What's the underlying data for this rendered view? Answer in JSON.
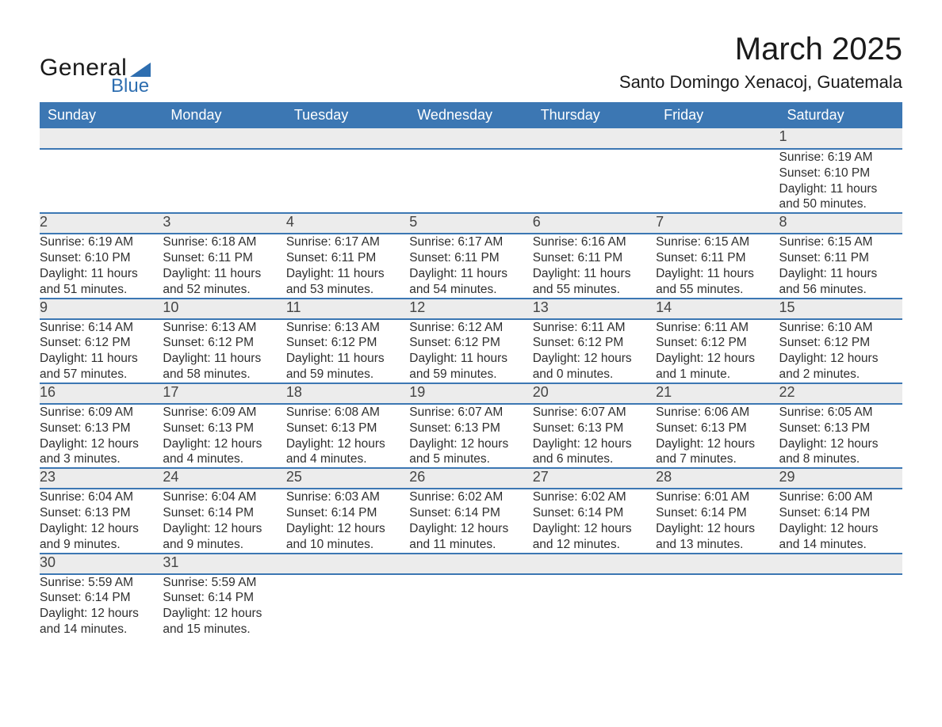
{
  "colors": {
    "header_bg": "#3c77b3",
    "header_text": "#ffffff",
    "daynum_bg": "#ececec",
    "row_divider": "#3c77b3",
    "body_text": "#2f2f2f",
    "logo_accent": "#2e6eb0",
    "page_bg": "#ffffff"
  },
  "typography": {
    "base_family": "Arial, Helvetica, sans-serif",
    "month_title_size_pt": 30,
    "location_size_pt": 16,
    "header_cell_size_pt": 13,
    "daynum_size_pt": 13,
    "detail_size_pt": 11
  },
  "logo": {
    "word1": "General",
    "word2": "Blue"
  },
  "title": "March 2025",
  "location": "Santo Domingo Xenacoj, Guatemala",
  "weekdays": [
    "Sunday",
    "Monday",
    "Tuesday",
    "Wednesday",
    "Thursday",
    "Friday",
    "Saturday"
  ],
  "labels": {
    "sunrise": "Sunrise: ",
    "sunset": "Sunset: ",
    "daylight": "Daylight: "
  },
  "weeks": [
    [
      null,
      null,
      null,
      null,
      null,
      null,
      {
        "n": "1",
        "sunrise": "6:19 AM",
        "sunset": "6:10 PM",
        "daylight_l1": "11 hours",
        "daylight_l2": "and 50 minutes."
      }
    ],
    [
      {
        "n": "2",
        "sunrise": "6:19 AM",
        "sunset": "6:10 PM",
        "daylight_l1": "11 hours",
        "daylight_l2": "and 51 minutes."
      },
      {
        "n": "3",
        "sunrise": "6:18 AM",
        "sunset": "6:11 PM",
        "daylight_l1": "11 hours",
        "daylight_l2": "and 52 minutes."
      },
      {
        "n": "4",
        "sunrise": "6:17 AM",
        "sunset": "6:11 PM",
        "daylight_l1": "11 hours",
        "daylight_l2": "and 53 minutes."
      },
      {
        "n": "5",
        "sunrise": "6:17 AM",
        "sunset": "6:11 PM",
        "daylight_l1": "11 hours",
        "daylight_l2": "and 54 minutes."
      },
      {
        "n": "6",
        "sunrise": "6:16 AM",
        "sunset": "6:11 PM",
        "daylight_l1": "11 hours",
        "daylight_l2": "and 55 minutes."
      },
      {
        "n": "7",
        "sunrise": "6:15 AM",
        "sunset": "6:11 PM",
        "daylight_l1": "11 hours",
        "daylight_l2": "and 55 minutes."
      },
      {
        "n": "8",
        "sunrise": "6:15 AM",
        "sunset": "6:11 PM",
        "daylight_l1": "11 hours",
        "daylight_l2": "and 56 minutes."
      }
    ],
    [
      {
        "n": "9",
        "sunrise": "6:14 AM",
        "sunset": "6:12 PM",
        "daylight_l1": "11 hours",
        "daylight_l2": "and 57 minutes."
      },
      {
        "n": "10",
        "sunrise": "6:13 AM",
        "sunset": "6:12 PM",
        "daylight_l1": "11 hours",
        "daylight_l2": "and 58 minutes."
      },
      {
        "n": "11",
        "sunrise": "6:13 AM",
        "sunset": "6:12 PM",
        "daylight_l1": "11 hours",
        "daylight_l2": "and 59 minutes."
      },
      {
        "n": "12",
        "sunrise": "6:12 AM",
        "sunset": "6:12 PM",
        "daylight_l1": "11 hours",
        "daylight_l2": "and 59 minutes."
      },
      {
        "n": "13",
        "sunrise": "6:11 AM",
        "sunset": "6:12 PM",
        "daylight_l1": "12 hours",
        "daylight_l2": "and 0 minutes."
      },
      {
        "n": "14",
        "sunrise": "6:11 AM",
        "sunset": "6:12 PM",
        "daylight_l1": "12 hours",
        "daylight_l2": "and 1 minute."
      },
      {
        "n": "15",
        "sunrise": "6:10 AM",
        "sunset": "6:12 PM",
        "daylight_l1": "12 hours",
        "daylight_l2": "and 2 minutes."
      }
    ],
    [
      {
        "n": "16",
        "sunrise": "6:09 AM",
        "sunset": "6:13 PM",
        "daylight_l1": "12 hours",
        "daylight_l2": "and 3 minutes."
      },
      {
        "n": "17",
        "sunrise": "6:09 AM",
        "sunset": "6:13 PM",
        "daylight_l1": "12 hours",
        "daylight_l2": "and 4 minutes."
      },
      {
        "n": "18",
        "sunrise": "6:08 AM",
        "sunset": "6:13 PM",
        "daylight_l1": "12 hours",
        "daylight_l2": "and 4 minutes."
      },
      {
        "n": "19",
        "sunrise": "6:07 AM",
        "sunset": "6:13 PM",
        "daylight_l1": "12 hours",
        "daylight_l2": "and 5 minutes."
      },
      {
        "n": "20",
        "sunrise": "6:07 AM",
        "sunset": "6:13 PM",
        "daylight_l1": "12 hours",
        "daylight_l2": "and 6 minutes."
      },
      {
        "n": "21",
        "sunrise": "6:06 AM",
        "sunset": "6:13 PM",
        "daylight_l1": "12 hours",
        "daylight_l2": "and 7 minutes."
      },
      {
        "n": "22",
        "sunrise": "6:05 AM",
        "sunset": "6:13 PM",
        "daylight_l1": "12 hours",
        "daylight_l2": "and 8 minutes."
      }
    ],
    [
      {
        "n": "23",
        "sunrise": "6:04 AM",
        "sunset": "6:13 PM",
        "daylight_l1": "12 hours",
        "daylight_l2": "and 9 minutes."
      },
      {
        "n": "24",
        "sunrise": "6:04 AM",
        "sunset": "6:14 PM",
        "daylight_l1": "12 hours",
        "daylight_l2": "and 9 minutes."
      },
      {
        "n": "25",
        "sunrise": "6:03 AM",
        "sunset": "6:14 PM",
        "daylight_l1": "12 hours",
        "daylight_l2": "and 10 minutes."
      },
      {
        "n": "26",
        "sunrise": "6:02 AM",
        "sunset": "6:14 PM",
        "daylight_l1": "12 hours",
        "daylight_l2": "and 11 minutes."
      },
      {
        "n": "27",
        "sunrise": "6:02 AM",
        "sunset": "6:14 PM",
        "daylight_l1": "12 hours",
        "daylight_l2": "and 12 minutes."
      },
      {
        "n": "28",
        "sunrise": "6:01 AM",
        "sunset": "6:14 PM",
        "daylight_l1": "12 hours",
        "daylight_l2": "and 13 minutes."
      },
      {
        "n": "29",
        "sunrise": "6:00 AM",
        "sunset": "6:14 PM",
        "daylight_l1": "12 hours",
        "daylight_l2": "and 14 minutes."
      }
    ],
    [
      {
        "n": "30",
        "sunrise": "5:59 AM",
        "sunset": "6:14 PM",
        "daylight_l1": "12 hours",
        "daylight_l2": "and 14 minutes."
      },
      {
        "n": "31",
        "sunrise": "5:59 AM",
        "sunset": "6:14 PM",
        "daylight_l1": "12 hours",
        "daylight_l2": "and 15 minutes."
      },
      null,
      null,
      null,
      null,
      null
    ]
  ]
}
